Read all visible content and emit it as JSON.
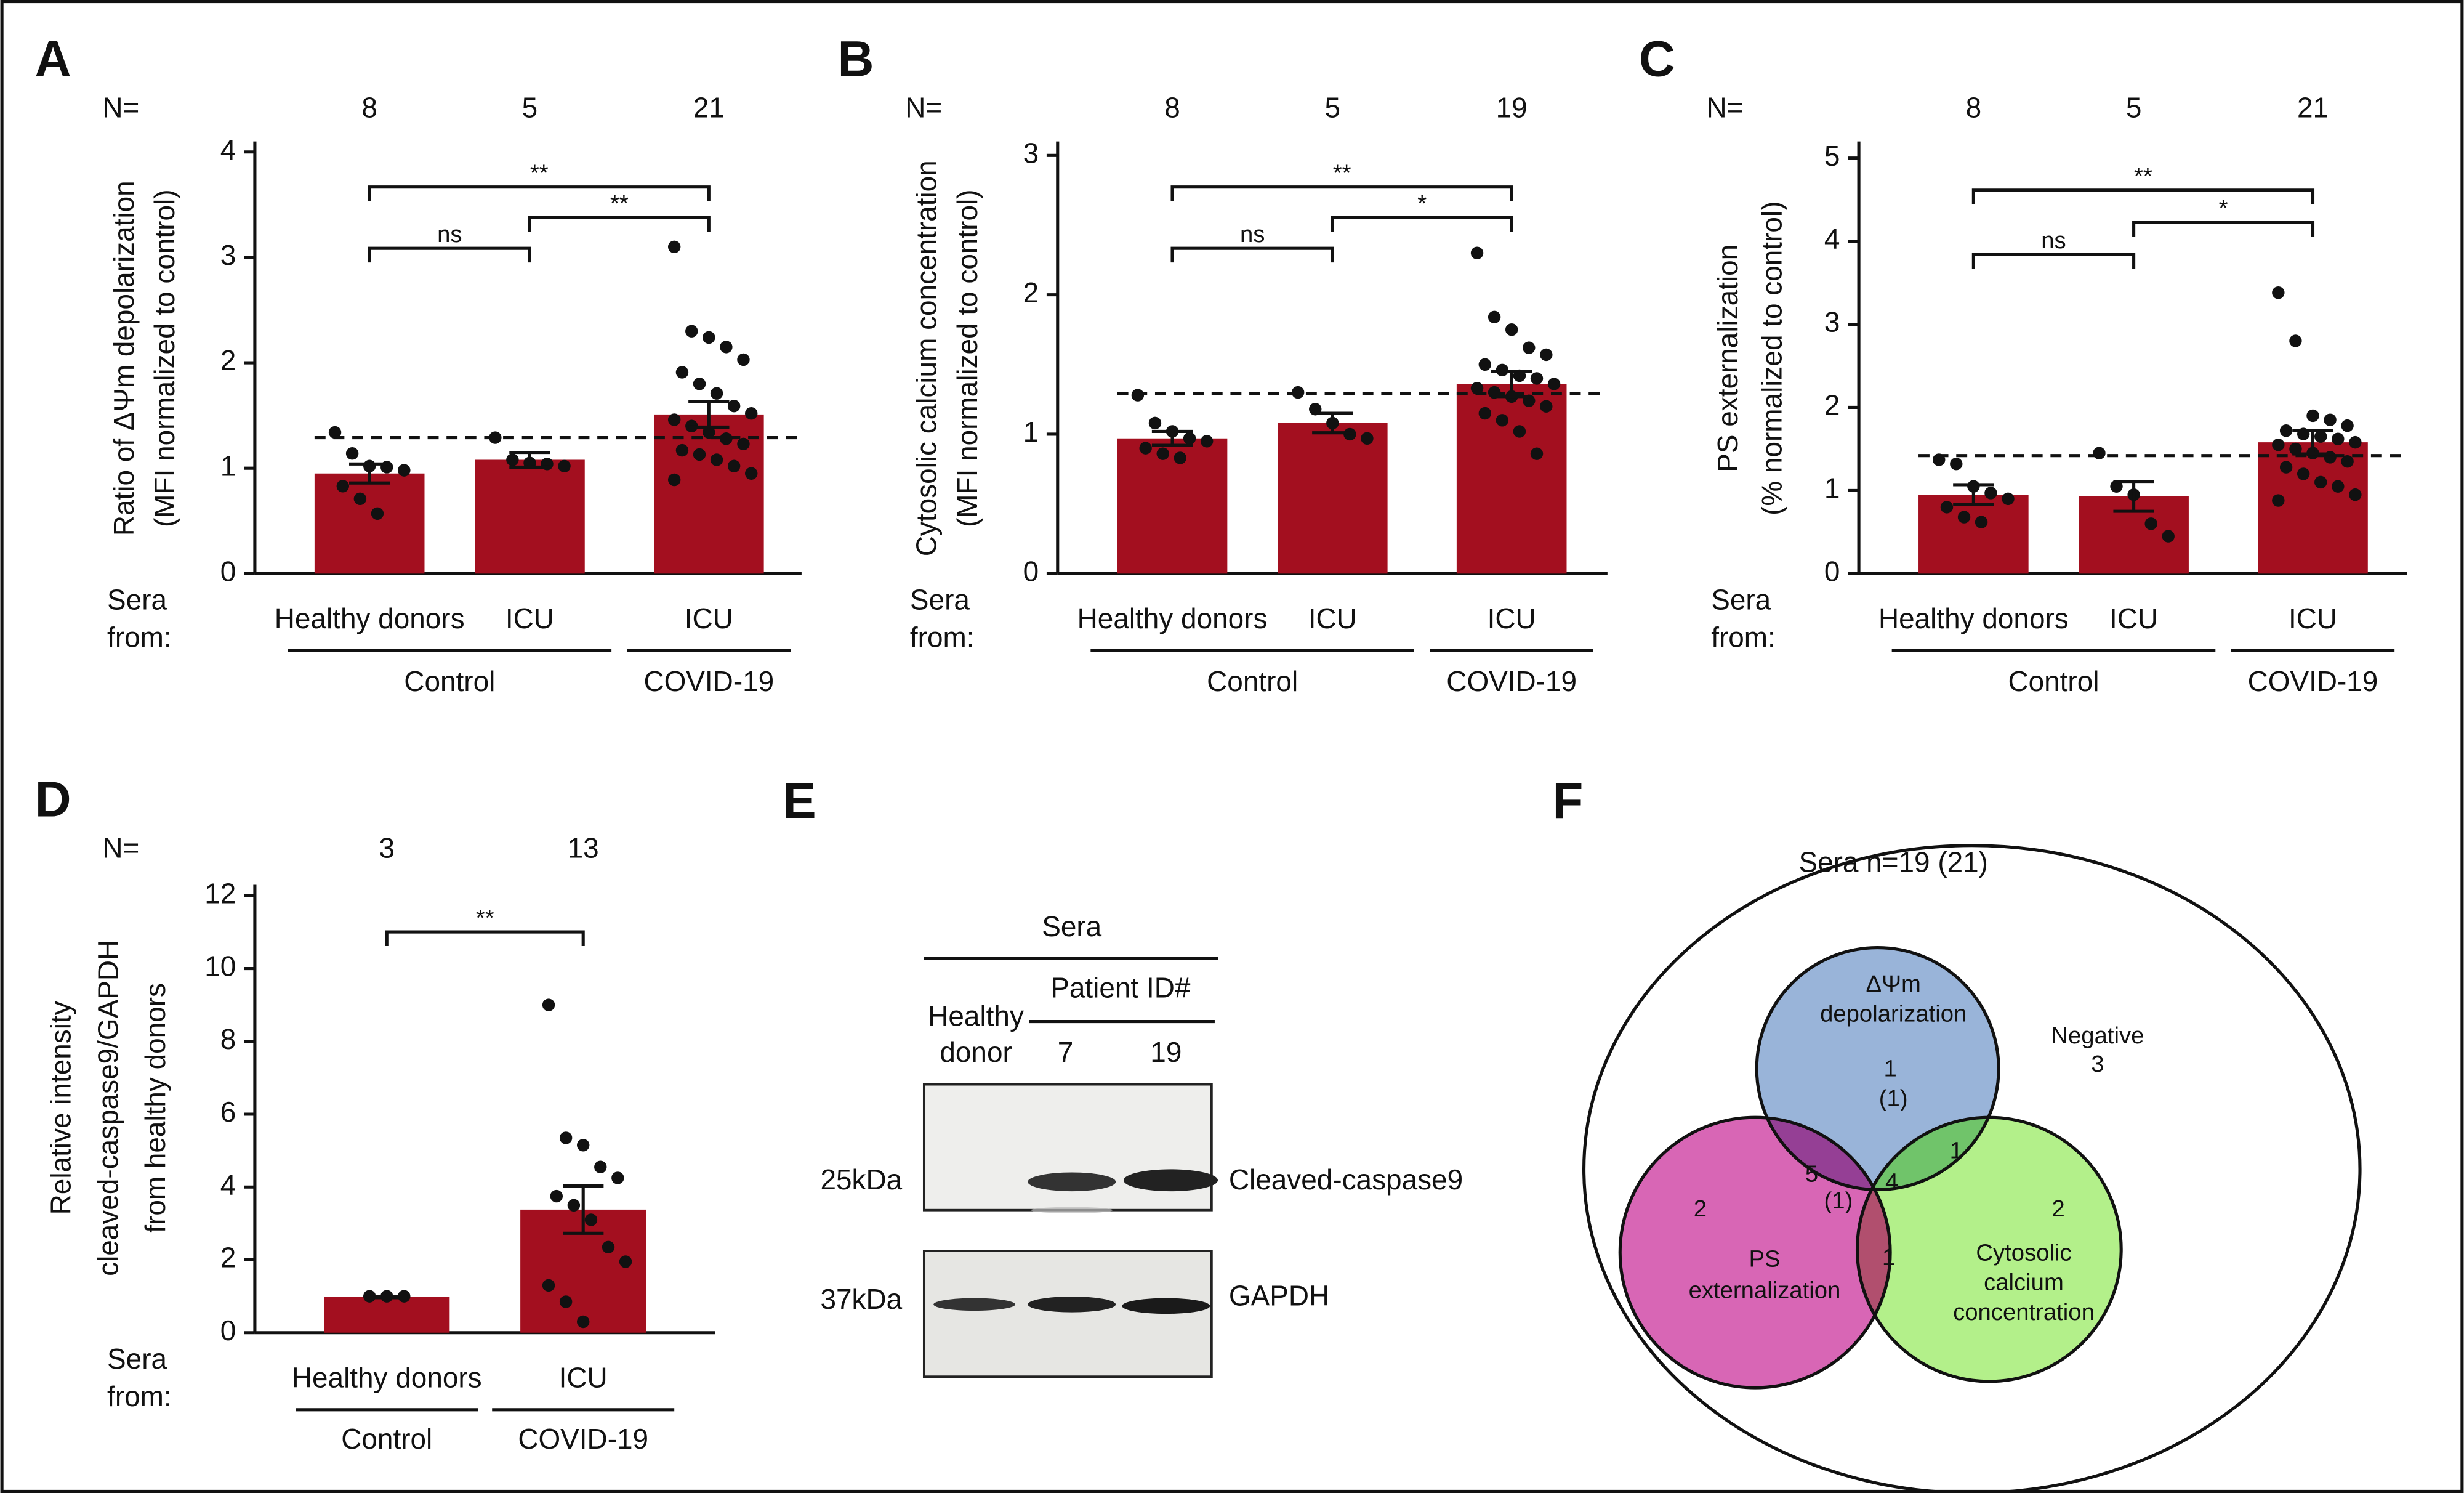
{
  "chart_data": [
    {
      "type": "bar",
      "panel": "A",
      "n_label": "N=",
      "n": [
        8,
        5,
        21
      ],
      "y_label": [
        "Ratio of ΔΨm depolarization",
        "(MFI normalized to control)"
      ],
      "sera_label": [
        "Sera",
        "from:"
      ],
      "categories": [
        "Healthy donors",
        "ICU",
        "ICU"
      ],
      "groups": [
        {
          "label": "Control",
          "categories": [
            0,
            1
          ]
        },
        {
          "label": "COVID-19",
          "categories": [
            2
          ]
        }
      ],
      "values": [
        0.95,
        1.08,
        1.51
      ],
      "errors": [
        0.09,
        0.07,
        0.12
      ],
      "color": "#a30f1f",
      "points": [
        [
          1.34,
          1.14,
          1.02,
          1.01,
          0.98,
          0.83,
          0.71,
          0.57
        ],
        [
          1.29,
          1.08,
          1.05,
          1.04,
          1.02
        ],
        [
          3.1,
          2.3,
          2.24,
          2.15,
          2.03,
          1.91,
          1.8,
          1.71,
          1.59,
          1.52,
          1.46,
          1.4,
          1.34,
          1.28,
          1.23,
          1.17,
          1.13,
          1.08,
          1.02,
          0.95,
          0.89
        ]
      ],
      "threshold": 1.29,
      "brackets": [
        {
          "pair": [
            0,
            2
          ],
          "label": "**"
        },
        {
          "pair": [
            1,
            2
          ],
          "label": "**"
        },
        {
          "pair": [
            0,
            1
          ],
          "label": "ns"
        }
      ],
      "ylim": [
        0,
        4.1
      ],
      "yticks": [
        0,
        1,
        2,
        3,
        4
      ]
    },
    {
      "type": "bar",
      "panel": "B",
      "n_label": "N=",
      "n": [
        8,
        5,
        19
      ],
      "y_label": [
        "Cytosolic calcium concentration",
        "(MFI normalized to control)"
      ],
      "sera_label": [
        "Sera",
        "from:"
      ],
      "categories": [
        "Healthy donors",
        "ICU",
        "ICU"
      ],
      "groups": [
        {
          "label": "Control",
          "categories": [
            0,
            1
          ]
        },
        {
          "label": "COVID-19",
          "categories": [
            2
          ]
        }
      ],
      "values": [
        0.97,
        1.08,
        1.36
      ],
      "errors": [
        0.05,
        0.07,
        0.09
      ],
      "color": "#a30f1f",
      "points": [
        [
          1.28,
          1.08,
          1.02,
          0.97,
          0.95,
          0.9,
          0.86,
          0.83
        ],
        [
          1.3,
          1.18,
          1.08,
          1.0,
          0.97
        ],
        [
          2.3,
          1.84,
          1.75,
          1.62,
          1.57,
          1.5,
          1.46,
          1.42,
          1.4,
          1.36,
          1.33,
          1.3,
          1.27,
          1.24,
          1.2,
          1.15,
          1.1,
          1.02,
          0.86
        ]
      ],
      "threshold": 1.29,
      "brackets": [
        {
          "pair": [
            0,
            2
          ],
          "label": "**"
        },
        {
          "pair": [
            1,
            2
          ],
          "label": "*"
        },
        {
          "pair": [
            0,
            1
          ],
          "label": "ns"
        }
      ],
      "ylim": [
        0,
        3.1
      ],
      "yticks": [
        0,
        1,
        2,
        3
      ]
    },
    {
      "type": "bar",
      "panel": "C",
      "n_label": "N=",
      "n": [
        8,
        5,
        21
      ],
      "y_label": [
        "PS externalization",
        "(% normalized to control)"
      ],
      "sera_label": [
        "Sera",
        "from:"
      ],
      "categories": [
        "Healthy donors",
        "ICU",
        "ICU"
      ],
      "groups": [
        {
          "label": "Control",
          "categories": [
            0,
            1
          ]
        },
        {
          "label": "COVID-19",
          "categories": [
            2
          ]
        }
      ],
      "values": [
        0.95,
        0.93,
        1.58
      ],
      "errors": [
        0.12,
        0.18,
        0.14
      ],
      "color": "#a30f1f",
      "points": [
        [
          1.37,
          1.32,
          1.05,
          0.97,
          0.9,
          0.8,
          0.68,
          0.62
        ],
        [
          1.45,
          1.05,
          0.95,
          0.6,
          0.45
        ],
        [
          3.38,
          2.8,
          1.9,
          1.85,
          1.78,
          1.72,
          1.68,
          1.65,
          1.62,
          1.58,
          1.55,
          1.5,
          1.45,
          1.4,
          1.35,
          1.28,
          1.2,
          1.1,
          1.05,
          0.95,
          0.88
        ]
      ],
      "threshold": 1.42,
      "brackets": [
        {
          "pair": [
            0,
            2
          ],
          "label": "**"
        },
        {
          "pair": [
            1,
            2
          ],
          "label": "*"
        },
        {
          "pair": [
            0,
            1
          ],
          "label": "ns"
        }
      ],
      "ylim": [
        0,
        5.2
      ],
      "yticks": [
        0,
        1,
        2,
        3,
        4,
        5
      ]
    },
    {
      "type": "bar",
      "panel": "D",
      "n_label": "N=",
      "n": [
        3,
        13
      ],
      "y_label": [
        "Relative intensity",
        "cleaved-caspase9/GAPDH",
        "from healthy donors"
      ],
      "sera_label": [
        "Sera",
        "from:"
      ],
      "categories": [
        "Healthy donors",
        "ICU"
      ],
      "groups": [
        {
          "label": "Control",
          "categories": [
            0
          ]
        },
        {
          "label": "COVID-19",
          "categories": [
            1
          ]
        }
      ],
      "values": [
        0.98,
        3.38
      ],
      "errors": [
        0.02,
        0.65
      ],
      "color": "#a30f1f",
      "points": [
        [
          1,
          1,
          1
        ],
        [
          9.0,
          5.35,
          5.15,
          4.55,
          4.25,
          3.75,
          3.5,
          3.1,
          2.35,
          1.95,
          1.3,
          0.85,
          0.3
        ]
      ],
      "brackets": [
        {
          "pair": [
            0,
            1
          ],
          "label": "**"
        }
      ],
      "ylim": [
        0,
        12.3
      ],
      "yticks": [
        0,
        2,
        4,
        6,
        8,
        10,
        12
      ]
    }
  ],
  "blot": {
    "panel": "E",
    "header": "Sera",
    "subheader": "Patient ID#",
    "lanes": [
      [
        "Healthy",
        "donor"
      ],
      7,
      19
    ],
    "markers": [
      "25kDa",
      "37kDa"
    ],
    "proteins": [
      "Cleaved-caspase9",
      "GAPDH"
    ]
  },
  "venn": {
    "panel": "F",
    "title": "Sera n=19 (21)",
    "sets": [
      [
        "ΔΨm",
        "depolarization"
      ],
      [
        "PS",
        "externalization"
      ],
      [
        "Cytosolic",
        "calcium",
        "concentration"
      ]
    ],
    "negative": [
      "Negative",
      3
    ],
    "regions": [
      [
        1,
        "(1)"
      ],
      [
        5,
        "(1)"
      ],
      [
        1
      ],
      [
        4
      ],
      [
        2
      ],
      [
        1
      ],
      [
        2
      ]
    ]
  }
}
